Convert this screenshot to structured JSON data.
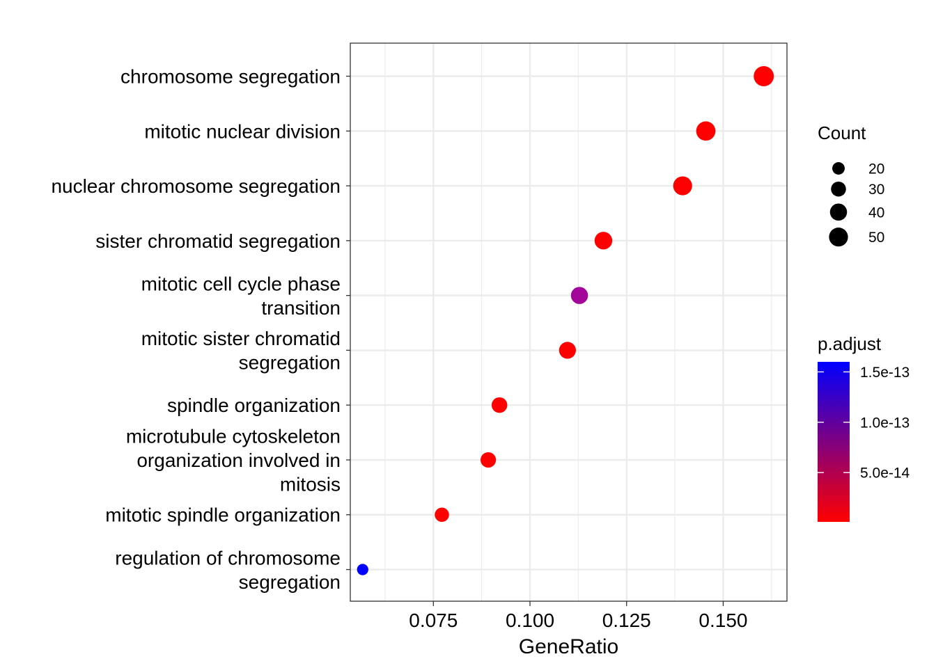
{
  "chart_data": {
    "type": "scatter",
    "title": "",
    "xlabel": "GeneRatio",
    "ylabel": "",
    "xlim": [
      0.0535,
      0.1665
    ],
    "xticks": [
      0.075,
      0.1,
      0.125,
      0.15
    ],
    "xtick_labels": [
      "0.075",
      "0.100",
      "0.125",
      "0.150"
    ],
    "grid": true,
    "categories": [
      [
        "chromosome segregation"
      ],
      [
        "mitotic nuclear division"
      ],
      [
        "nuclear chromosome segregation"
      ],
      [
        "sister chromatid segregation"
      ],
      [
        "mitotic cell cycle phase",
        "transition"
      ],
      [
        "mitotic sister chromatid",
        "segregation"
      ],
      [
        "spindle organization"
      ],
      [
        "microtubule cytoskeleton",
        "organization involved in",
        "mitosis"
      ],
      [
        "mitotic spindle organization"
      ],
      [
        "regulation of chromosome",
        "segregation"
      ]
    ],
    "points": [
      {
        "x": 0.1605,
        "count": 57,
        "color": "#FF0000"
      },
      {
        "x": 0.1455,
        "count": 52,
        "color": "#FF0000"
      },
      {
        "x": 0.1395,
        "count": 50,
        "color": "#FF0000"
      },
      {
        "x": 0.119,
        "count": 43,
        "color": "#FF0000"
      },
      {
        "x": 0.1128,
        "count": 40,
        "color": "#A10699"
      },
      {
        "x": 0.1097,
        "count": 39,
        "color": "#FF0000"
      },
      {
        "x": 0.0921,
        "count": 33,
        "color": "#FF0000"
      },
      {
        "x": 0.0892,
        "count": 32,
        "color": "#FF0000"
      },
      {
        "x": 0.0772,
        "count": 27,
        "color": "#FF0000"
      },
      {
        "x": 0.0567,
        "count": 16,
        "color": "#0000FF"
      }
    ],
    "size_legend": {
      "title": "Count",
      "items": [
        {
          "label": "20",
          "value": 20
        },
        {
          "label": "30",
          "value": 30
        },
        {
          "label": "40",
          "value": 40
        },
        {
          "label": "50",
          "value": 50
        }
      ]
    },
    "color_legend": {
      "title": "p.adjust",
      "low_color": "#FF0000",
      "high_color": "#0000FF",
      "range": [
        1e-15,
        1.6e-13
      ],
      "ticks": [
        {
          "label": "1.5e-13",
          "value": 1.5e-13
        },
        {
          "label": "1.0e-13",
          "value": 1e-13
        },
        {
          "label": "5.0e-14",
          "value": 5e-14
        }
      ]
    }
  }
}
